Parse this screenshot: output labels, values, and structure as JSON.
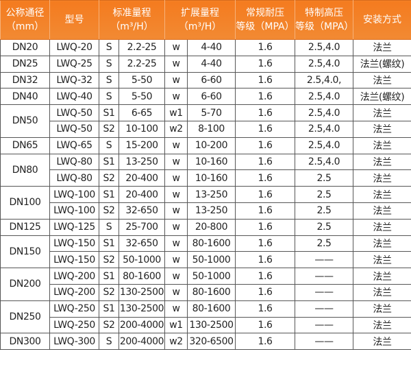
{
  "header": {
    "diameter": [
      "公称通径",
      "（mm）"
    ],
    "model": "型号",
    "standard_range": [
      "标准量程",
      "（m³/H）"
    ],
    "extended_range": [
      "扩展量程",
      "（m³/H）"
    ],
    "normal_pressure": [
      "常规耐压",
      "等级（MPA）"
    ],
    "special_pressure": [
      "特制高压",
      "等级（MPA）"
    ],
    "installation": "安装方式"
  },
  "groups": [
    {
      "dn": "DN20",
      "rows": [
        [
          "LWQ-20",
          "S",
          "2.2-25",
          "w",
          "4-40",
          "1.6",
          "2.5,4.0",
          "法兰"
        ]
      ]
    },
    {
      "dn": "DN25",
      "rows": [
        [
          "LWQ-25",
          "S",
          "2.2-25",
          "w",
          "4-40",
          "1.6",
          "2.5,4.0",
          "法兰(螺纹)"
        ]
      ]
    },
    {
      "dn": "DN32",
      "rows": [
        [
          "LWQ-32",
          "S",
          "5-50",
          "w",
          "6-60",
          "1.6",
          "2.5,4.0,",
          "法兰"
        ]
      ]
    },
    {
      "dn": "DN40",
      "rows": [
        [
          "LWQ-40",
          "S",
          "5-50",
          "w",
          "6-60",
          "1.6",
          "2.5,4.0",
          "法兰(螺纹)"
        ]
      ]
    },
    {
      "dn": "DN50",
      "rows": [
        [
          "LWQ-50",
          "S1",
          "6-65",
          "w1",
          "5-70",
          "1.6",
          "2.5,4.0",
          "法兰"
        ],
        [
          "LWQ-50",
          "S2",
          "10-100",
          "w2",
          "8-100",
          "1.6",
          "2.5,4.0",
          "法兰"
        ]
      ]
    },
    {
      "dn": "DN65",
      "rows": [
        [
          "LWQ-65",
          "S",
          "15-200",
          "w",
          "10-200",
          "1.6",
          "2.5,4.0",
          "法兰"
        ]
      ]
    },
    {
      "dn": "DN80",
      "rows": [
        [
          "LWQ-80",
          "S1",
          "13-250",
          "w",
          "10-160",
          "1.6",
          "2.5,4.0",
          "法兰"
        ],
        [
          "LWQ-80",
          "S2",
          "20-400",
          "w",
          "10-160",
          "1.6",
          "2.5",
          "法兰"
        ]
      ]
    },
    {
      "dn": "DN100",
      "rows": [
        [
          "LWQ-100",
          "S1",
          "20-400",
          "w",
          "13-250",
          "1.6",
          "2.5",
          "法兰"
        ],
        [
          "LWQ-100",
          "S2",
          "32-650",
          "w",
          "13-250",
          "1.6",
          "2.5",
          "法兰"
        ]
      ]
    },
    {
      "dn": "DN125",
      "rows": [
        [
          "LWQ-125",
          "S",
          "25-700",
          "w",
          "20-800",
          "1.6",
          "2.5",
          "法兰"
        ]
      ]
    },
    {
      "dn": "DN150",
      "rows": [
        [
          "LWQ-150",
          "S1",
          "32-650",
          "w",
          "80-1600",
          "1.6",
          "2.5",
          "法兰"
        ],
        [
          "LWQ-150",
          "S2",
          "50-1000",
          "w",
          "50-1000",
          "1.6",
          "——",
          "法兰"
        ]
      ]
    },
    {
      "dn": "DN200",
      "rows": [
        [
          "LWQ-200",
          "S1",
          "80-1600",
          "w",
          "50-1000",
          "1.6",
          "——",
          "法兰"
        ],
        [
          "LWQ-200",
          "S2",
          "130-2500",
          "w",
          "80-1600",
          "1.6",
          "——",
          "法兰"
        ]
      ]
    },
    {
      "dn": "DN250",
      "rows": [
        [
          "LWQ-250",
          "S1",
          "130-2500",
          "w",
          "80-1600",
          "1.6",
          "——",
          "法兰"
        ],
        [
          "LWQ-250",
          "S2",
          "200-4000",
          "w1",
          "130-2500",
          "1.6",
          "——",
          "法兰"
        ]
      ]
    },
    {
      "dn": "DN300",
      "rows": [
        [
          "LWQ-300",
          "S",
          "200-4000",
          "w2",
          "320-6500",
          "1.6",
          "——",
          "法兰"
        ]
      ]
    }
  ],
  "colors": {
    "header_bg": "#f47b1f",
    "header_text": "#ffffff",
    "border": "#555555"
  }
}
